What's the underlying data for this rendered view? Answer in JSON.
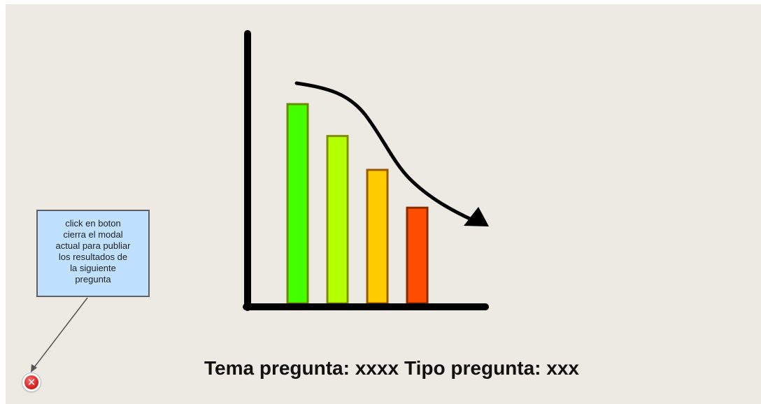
{
  "illustration": {
    "type": "bar",
    "bar_values": [
      100,
      84,
      67,
      48
    ],
    "trend": "decreasing",
    "colors": [
      "#44ff00",
      "#b4ff00",
      "#ffcc00",
      "#ff4d00"
    ],
    "border_colors": [
      "#6a8a00",
      "#7f8f00",
      "#9a5a00",
      "#8a2a00"
    ],
    "axis_color": "#000000"
  },
  "callout": {
    "lines": [
      "click en boton",
      "cierra el modal",
      "actual para publiar",
      "los resultados de",
      "la siguiente",
      "pregunta"
    ],
    "background": "#bfe0ff"
  },
  "close_button": {
    "icon": "close-icon",
    "glyph": "✕",
    "color": "#d01a1a"
  },
  "footer": {
    "tema": "Tema pregunta: xxxx",
    "tipo": "Tipo pregunta: xxx"
  }
}
